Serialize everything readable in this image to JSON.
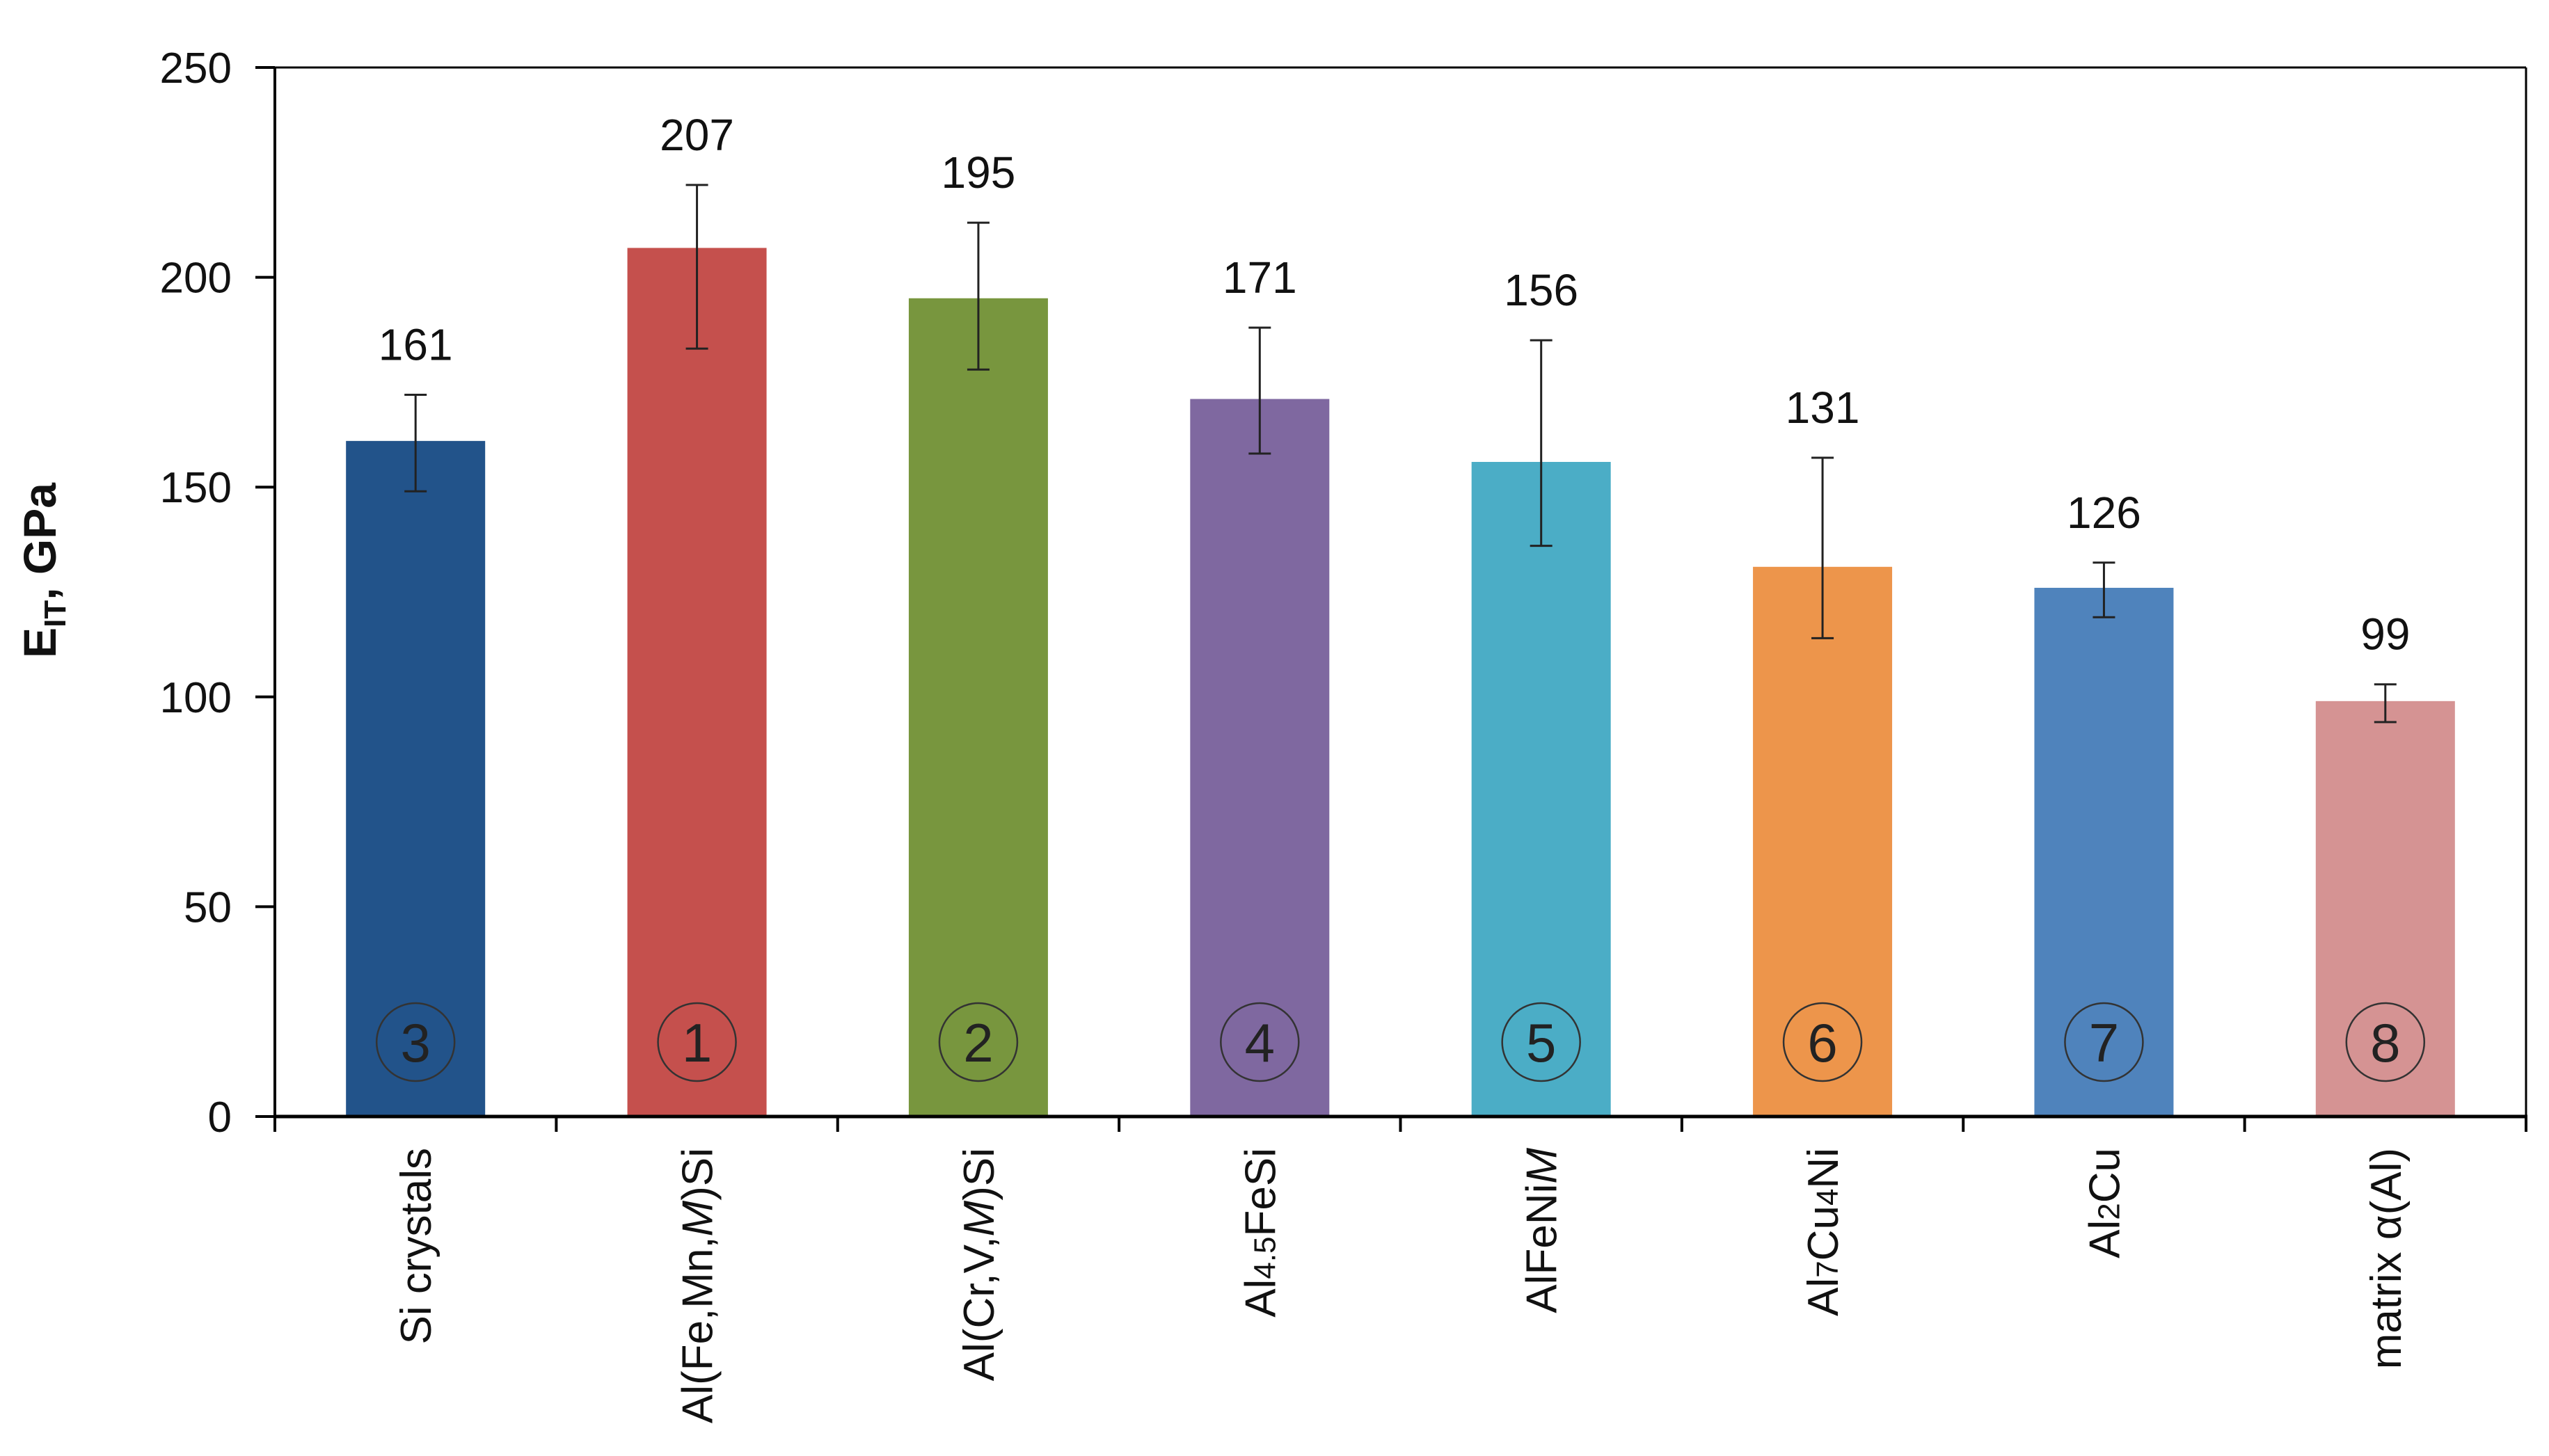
{
  "chart_data": {
    "type": "bar",
    "ylabel": "E",
    "ylabel_subscript": "IT",
    "ylabel_unit": ", GPa",
    "ylim": [
      0,
      250
    ],
    "yticks": [
      0,
      50,
      100,
      150,
      200,
      250
    ],
    "grid": false,
    "categories": [
      {
        "label": "Si crystals",
        "parts": [
          {
            "t": "Si crystals"
          }
        ]
      },
      {
        "label": "Al(Fe,Mn,M)Si",
        "parts": [
          {
            "t": "Al(Fe,Mn,"
          },
          {
            "t": "M",
            "style": "italic"
          },
          {
            "t": ")Si"
          }
        ]
      },
      {
        "label": "Al(Cr,V,M)Si",
        "parts": [
          {
            "t": "Al(Cr,V,"
          },
          {
            "t": "M",
            "style": "italic"
          },
          {
            "t": ")Si"
          }
        ]
      },
      {
        "label": "Al4.5FeSi",
        "parts": [
          {
            "t": "Al"
          },
          {
            "t": "4.5",
            "style": "sub"
          },
          {
            "t": "FeSi"
          }
        ]
      },
      {
        "label": "AlFeNiM",
        "parts": [
          {
            "t": "AlFeNi"
          },
          {
            "t": "M",
            "style": "italic"
          }
        ]
      },
      {
        "label": "Al7Cu4Ni",
        "parts": [
          {
            "t": "Al"
          },
          {
            "t": "7",
            "style": "sub"
          },
          {
            "t": "Cu"
          },
          {
            "t": "4",
            "style": "sub"
          },
          {
            "t": "Ni"
          }
        ]
      },
      {
        "label": "Al2Cu",
        "parts": [
          {
            "t": "Al"
          },
          {
            "t": "2",
            "style": "sub"
          },
          {
            "t": "Cu"
          }
        ]
      },
      {
        "label": "matrix α(Al)",
        "parts": [
          {
            "t": "matrix α(Al)"
          }
        ]
      }
    ],
    "values": [
      161,
      207,
      195,
      171,
      156,
      131,
      126,
      99
    ],
    "value_labels": [
      "161",
      "207",
      "195",
      "171",
      "156",
      "131",
      "126",
      "99"
    ],
    "error_low": [
      149,
      183,
      178,
      158,
      136,
      114,
      119,
      94
    ],
    "error_high": [
      172,
      222,
      213,
      188,
      185,
      157,
      132,
      103
    ],
    "markers": [
      "3",
      "1",
      "2",
      "4",
      "5",
      "6",
      "7",
      "8"
    ],
    "colors": [
      "#22538a",
      "#c5504d",
      "#78963e",
      "#7f68a0",
      "#4badc6",
      "#ed954b",
      "#4f83bc",
      "#d59393"
    ]
  }
}
